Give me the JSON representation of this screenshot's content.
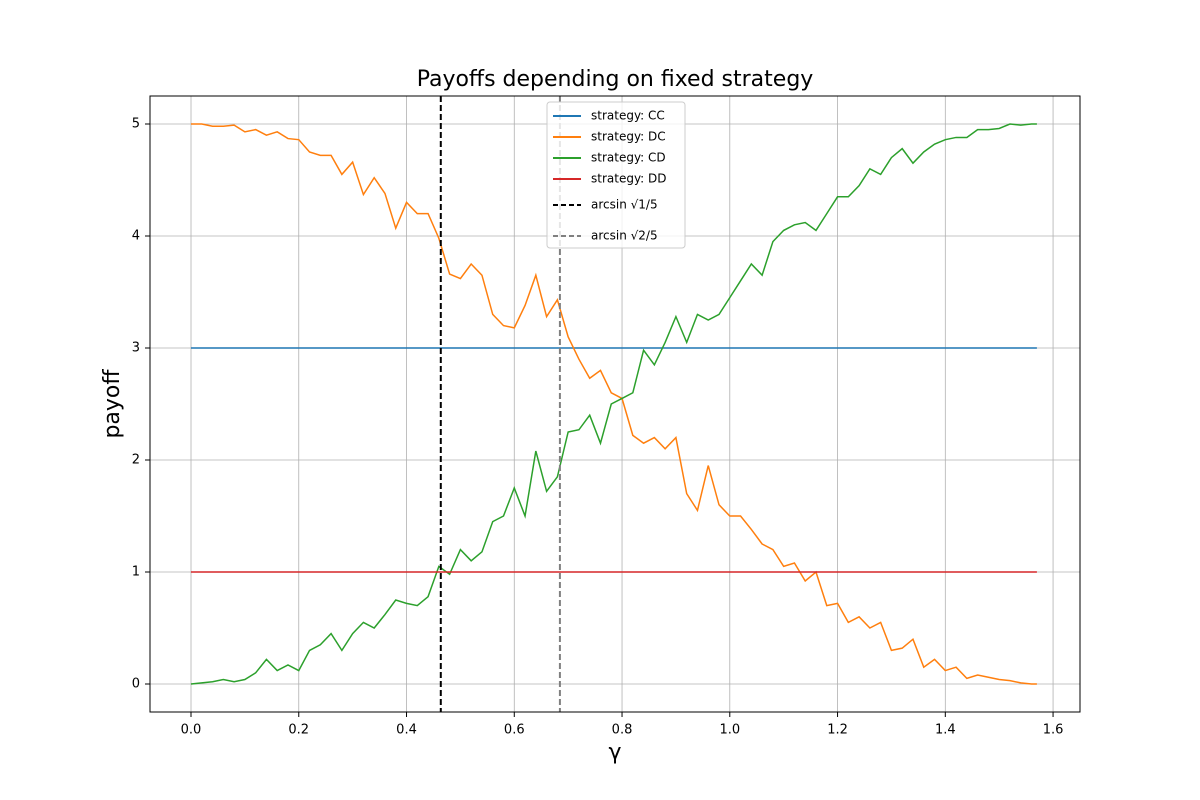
{
  "chart_data": {
    "type": "line",
    "title": "Payoffs depending on fixed strategy",
    "x_label": "γ",
    "y_label": "payoff",
    "x": [
      0,
      0.02,
      0.04,
      0.06,
      0.08,
      0.1,
      0.12,
      0.14,
      0.16,
      0.18,
      0.2,
      0.22,
      0.24,
      0.26,
      0.28,
      0.3,
      0.32,
      0.34,
      0.36,
      0.38,
      0.4,
      0.42,
      0.44,
      0.46,
      0.48,
      0.5,
      0.52,
      0.54,
      0.56,
      0.58,
      0.6,
      0.62,
      0.64,
      0.66,
      0.68,
      0.7,
      0.72,
      0.74,
      0.76,
      0.78,
      0.8,
      0.82,
      0.84,
      0.86,
      0.88,
      0.9,
      0.92,
      0.94,
      0.96,
      0.98,
      1,
      1.02,
      1.04,
      1.06,
      1.08,
      1.1,
      1.12,
      1.14,
      1.16,
      1.18,
      1.2,
      1.22,
      1.24,
      1.26,
      1.28,
      1.3,
      1.32,
      1.34,
      1.36,
      1.38,
      1.4,
      1.42,
      1.44,
      1.46,
      1.48,
      1.5,
      1.52,
      1.54,
      1.56,
      1.57
    ],
    "series": [
      {
        "name": "strategy: CC",
        "color": "#1f77b4",
        "values": [
          3,
          3,
          3,
          3,
          3,
          3,
          3,
          3,
          3,
          3,
          3,
          3,
          3,
          3,
          3,
          3,
          3,
          3,
          3,
          3,
          3,
          3,
          3,
          3,
          3,
          3,
          3,
          3,
          3,
          3,
          3,
          3,
          3,
          3,
          3,
          3,
          3,
          3,
          3,
          3,
          3,
          3,
          3,
          3,
          3,
          3,
          3,
          3,
          3,
          3,
          3,
          3,
          3,
          3,
          3,
          3,
          3,
          3,
          3,
          3,
          3,
          3,
          3,
          3,
          3,
          3,
          3,
          3,
          3,
          3,
          3,
          3,
          3,
          3,
          3,
          3,
          3,
          3,
          3,
          3
        ]
      },
      {
        "name": "strategy: DC",
        "color": "#ff7f0e",
        "values": [
          5.0,
          5.0,
          4.98,
          4.98,
          4.99,
          4.93,
          4.95,
          4.9,
          4.93,
          4.87,
          4.86,
          4.75,
          4.72,
          4.72,
          4.55,
          4.66,
          4.37,
          4.52,
          4.38,
          4.07,
          4.3,
          4.2,
          4.2,
          3.98,
          3.66,
          3.62,
          3.75,
          3.65,
          3.3,
          3.2,
          3.18,
          3.38,
          3.65,
          3.28,
          3.43,
          3.1,
          2.9,
          2.73,
          2.8,
          2.6,
          2.55,
          2.22,
          2.15,
          2.2,
          2.1,
          2.2,
          1.7,
          1.55,
          1.95,
          1.6,
          1.5,
          1.5,
          1.38,
          1.25,
          1.2,
          1.05,
          1.08,
          0.92,
          1.0,
          0.7,
          0.72,
          0.55,
          0.6,
          0.5,
          0.55,
          0.3,
          0.32,
          0.4,
          0.15,
          0.22,
          0.12,
          0.15,
          0.05,
          0.08,
          0.06,
          0.04,
          0.03,
          0.01,
          0.0,
          0.0
        ]
      },
      {
        "name": "strategy: CD",
        "color": "#2ca02c",
        "values": [
          0,
          0.01,
          0.02,
          0.04,
          0.02,
          0.04,
          0.1,
          0.22,
          0.12,
          0.17,
          0.12,
          0.3,
          0.35,
          0.45,
          0.3,
          0.45,
          0.55,
          0.5,
          0.62,
          0.75,
          0.72,
          0.7,
          0.78,
          1.05,
          0.98,
          1.2,
          1.1,
          1.18,
          1.45,
          1.5,
          1.75,
          1.5,
          2.08,
          1.72,
          1.85,
          2.25,
          2.27,
          2.4,
          2.15,
          2.5,
          2.55,
          2.6,
          2.98,
          2.85,
          3.05,
          3.28,
          3.05,
          3.3,
          3.25,
          3.3,
          3.45,
          3.6,
          3.75,
          3.65,
          3.95,
          4.05,
          4.1,
          4.12,
          4.05,
          4.2,
          4.35,
          4.35,
          4.45,
          4.6,
          4.55,
          4.7,
          4.78,
          4.65,
          4.75,
          4.82,
          4.86,
          4.88,
          4.88,
          4.95,
          4.95,
          4.96,
          5.0,
          4.99,
          5.0,
          5.0
        ]
      },
      {
        "name": "strategy: DD",
        "color": "#d62728",
        "values": [
          1,
          1,
          1,
          1,
          1,
          1,
          1,
          1,
          1,
          1,
          1,
          1,
          1,
          1,
          1,
          1,
          1,
          1,
          1,
          1,
          1,
          1,
          1,
          1,
          1,
          1,
          1,
          1,
          1,
          1,
          1,
          1,
          1,
          1,
          1,
          1,
          1,
          1,
          1,
          1,
          1,
          1,
          1,
          1,
          1,
          1,
          1,
          1,
          1,
          1,
          1,
          1,
          1,
          1,
          1,
          1,
          1,
          1,
          1,
          1,
          1,
          1,
          1,
          1,
          1,
          1,
          1,
          1,
          1,
          1,
          1,
          1,
          1,
          1,
          1,
          1,
          1,
          1,
          1,
          1
        ]
      }
    ],
    "vlines": [
      {
        "x": 0.4636,
        "label": "arcsin √1/5",
        "color": "#000000"
      },
      {
        "x": 0.6847,
        "label": "arcsin √2/5",
        "color": "#808080"
      }
    ],
    "xlim": [
      -0.0761,
      1.65
    ],
    "ylim": [
      -0.25,
      5.25
    ],
    "xticks": [
      {
        "value": 0,
        "label": "0.0"
      },
      0.2,
      0.4,
      0.6,
      0.8,
      {
        "value": 1,
        "label": "1.0"
      },
      1.2,
      1.4,
      1.6
    ],
    "yticks": [
      0,
      1,
      2,
      3,
      4,
      5
    ],
    "grid": true,
    "legend": "upper center"
  }
}
